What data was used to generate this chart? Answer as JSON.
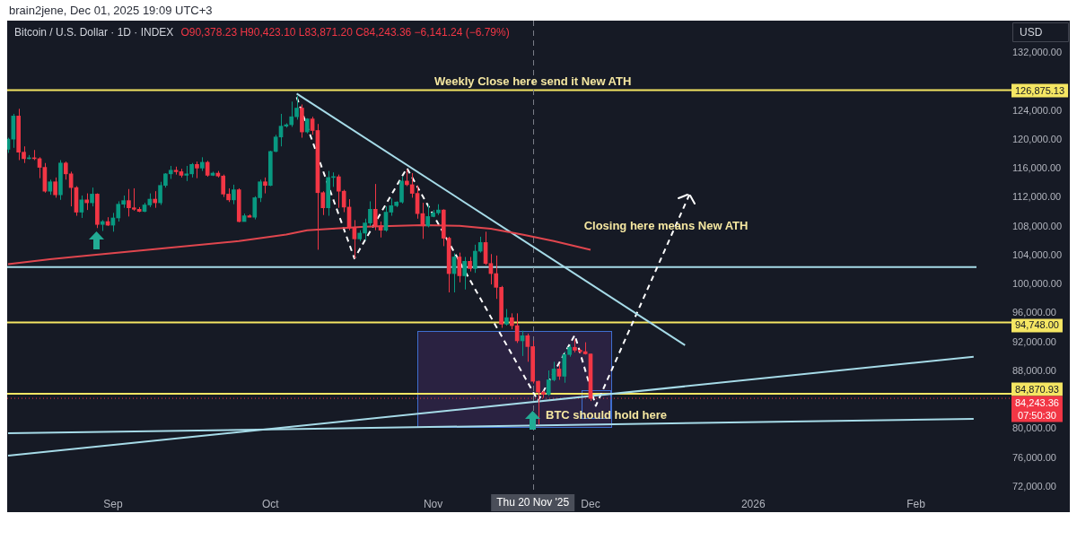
{
  "chart_data": {
    "type": "candlestick",
    "title": "Bitcoin / U.S. Dollar · 1D · INDEX",
    "subtitle": "O90,378.23 H90,423.10 L83,871.20 C84,243.36 −6,141.24 (−6.79%)",
    "ylabel": "USD",
    "x": [
      "2025-08-12",
      "2025-08-13",
      "2025-08-14",
      "2025-08-15",
      "2025-08-16",
      "2025-08-17",
      "2025-08-18",
      "2025-08-19",
      "2025-08-20",
      "2025-08-21",
      "2025-08-22",
      "2025-08-23",
      "2025-08-24",
      "2025-08-25",
      "2025-08-26",
      "2025-08-27",
      "2025-08-28",
      "2025-08-29",
      "2025-08-30",
      "2025-08-31",
      "2025-09-01",
      "2025-09-02",
      "2025-09-03",
      "2025-09-04",
      "2025-09-05",
      "2025-09-06",
      "2025-09-07",
      "2025-09-08",
      "2025-09-09",
      "2025-09-10",
      "2025-09-11",
      "2025-09-12",
      "2025-09-13",
      "2025-09-14",
      "2025-09-15",
      "2025-09-16",
      "2025-09-17",
      "2025-09-18",
      "2025-09-19",
      "2025-09-20",
      "2025-09-21",
      "2025-09-22",
      "2025-09-23",
      "2025-09-24",
      "2025-09-25",
      "2025-09-26",
      "2025-09-27",
      "2025-09-28",
      "2025-09-29",
      "2025-09-30",
      "2025-10-01",
      "2025-10-02",
      "2025-10-03",
      "2025-10-04",
      "2025-10-05",
      "2025-10-06",
      "2025-10-07",
      "2025-10-08",
      "2025-10-09",
      "2025-10-10",
      "2025-10-11",
      "2025-10-12",
      "2025-10-13",
      "2025-10-14",
      "2025-10-15",
      "2025-10-16",
      "2025-10-17",
      "2025-10-18",
      "2025-10-19",
      "2025-10-20",
      "2025-10-21",
      "2025-10-22",
      "2025-10-23",
      "2025-10-24",
      "2025-10-25",
      "2025-10-26",
      "2025-10-27",
      "2025-10-28",
      "2025-10-29",
      "2025-10-30",
      "2025-10-31",
      "2025-11-01",
      "2025-11-02",
      "2025-11-03",
      "2025-11-04",
      "2025-11-05",
      "2025-11-06",
      "2025-11-07",
      "2025-11-08",
      "2025-11-09",
      "2025-11-10",
      "2025-11-11",
      "2025-11-12",
      "2025-11-13",
      "2025-11-14",
      "2025-11-15",
      "2025-11-16",
      "2025-11-17",
      "2025-11-18",
      "2025-11-19",
      "2025-11-20",
      "2025-11-21",
      "2025-11-22",
      "2025-11-23",
      "2025-11-24",
      "2025-11-25",
      "2025-11-26",
      "2025-11-27",
      "2025-11-28",
      "2025-11-29",
      "2025-11-30",
      "2025-12-01"
    ],
    "ohlc": [
      [
        118700,
        120300,
        118200,
        120100
      ],
      [
        120100,
        123600,
        118900,
        123300
      ],
      [
        123300,
        124300,
        117200,
        118300
      ],
      [
        118300,
        119100,
        116800,
        117400
      ],
      [
        117400,
        117900,
        117300,
        117500
      ],
      [
        117500,
        118600,
        117200,
        117400
      ],
      [
        117400,
        117600,
        114700,
        116200
      ],
      [
        116200,
        116800,
        112700,
        112900
      ],
      [
        112900,
        114500,
        112400,
        114200
      ],
      [
        114200,
        114800,
        112000,
        112400
      ],
      [
        112400,
        117200,
        111700,
        116800
      ],
      [
        116800,
        117000,
        114500,
        115300
      ],
      [
        115300,
        115600,
        110800,
        113400
      ],
      [
        113400,
        113600,
        109500,
        110000
      ],
      [
        110000,
        112300,
        109200,
        111700
      ],
      [
        111700,
        112600,
        110300,
        111300
      ],
      [
        111300,
        113400,
        110800,
        112500
      ],
      [
        112500,
        112600,
        107800,
        108300
      ],
      [
        108300,
        108900,
        107400,
        108700
      ],
      [
        108700,
        109300,
        108100,
        108200
      ],
      [
        108200,
        109900,
        107300,
        109200
      ],
      [
        109200,
        111500,
        108700,
        111100
      ],
      [
        111100,
        112300,
        110600,
        111600
      ],
      [
        111600,
        113200,
        109400,
        110600
      ],
      [
        110600,
        113300,
        110200,
        110400
      ],
      [
        110400,
        110700,
        110000,
        110100
      ],
      [
        110100,
        111300,
        110000,
        111000
      ],
      [
        111000,
        112600,
        110700,
        111800
      ],
      [
        111800,
        112900,
        110600,
        111300
      ],
      [
        111300,
        114200,
        111000,
        113700
      ],
      [
        113700,
        115400,
        113400,
        115300
      ],
      [
        115300,
        116400,
        114600,
        115800
      ],
      [
        115800,
        116300,
        115200,
        115600
      ],
      [
        115600,
        116000,
        114800,
        115100
      ],
      [
        115100,
        116400,
        114300,
        115300
      ],
      [
        115300,
        116800,
        114800,
        116600
      ],
      [
        116600,
        117000,
        114700,
        116100
      ],
      [
        116100,
        117600,
        115700,
        116900
      ],
      [
        116900,
        117100,
        114900,
        115100
      ],
      [
        115100,
        115600,
        115000,
        115400
      ],
      [
        115400,
        115700,
        114800,
        115000
      ],
      [
        115000,
        115200,
        112100,
        112500
      ],
      [
        112500,
        113300,
        111400,
        111700
      ],
      [
        111700,
        113800,
        111100,
        113100
      ],
      [
        113100,
        113300,
        108600,
        108700
      ],
      [
        108700,
        109800,
        108700,
        109500
      ],
      [
        109500,
        109700,
        109300,
        109300
      ],
      [
        109300,
        112200,
        109000,
        112000
      ],
      [
        112000,
        114500,
        111400,
        114200
      ],
      [
        114200,
        114800,
        112600,
        113700
      ],
      [
        113700,
        118500,
        113600,
        118400
      ],
      [
        118400,
        120700,
        118300,
        120400
      ],
      [
        120400,
        123600,
        119100,
        121900
      ],
      [
        121900,
        122300,
        121700,
        122100
      ],
      [
        122100,
        125300,
        121800,
        123200
      ],
      [
        123200,
        126100,
        122800,
        124400
      ],
      [
        124400,
        124900,
        120300,
        121100
      ],
      [
        121100,
        123000,
        120900,
        122900
      ],
      [
        122900,
        123200,
        120700,
        121300
      ],
      [
        121300,
        122200,
        104800,
        112700
      ],
      [
        112700,
        112900,
        109600,
        110600
      ],
      [
        110600,
        115700,
        109500,
        114800
      ],
      [
        114800,
        115500,
        113500,
        114900
      ],
      [
        114900,
        115200,
        110600,
        112900
      ],
      [
        112900,
        113100,
        110000,
        110700
      ],
      [
        110700,
        111800,
        107500,
        107800
      ],
      [
        107800,
        108900,
        103600,
        106300
      ],
      [
        106300,
        107500,
        106000,
        107100
      ],
      [
        107100,
        109100,
        106100,
        108500
      ],
      [
        108500,
        111500,
        108100,
        110400
      ],
      [
        110400,
        113900,
        107500,
        108100
      ],
      [
        108100,
        108700,
        106500,
        107500
      ],
      [
        107500,
        110800,
        107300,
        110000
      ],
      [
        110000,
        111900,
        109500,
        110900
      ],
      [
        110900,
        111500,
        110700,
        111400
      ],
      [
        111400,
        114900,
        111200,
        114300
      ],
      [
        114300,
        115900,
        113600,
        113800
      ],
      [
        113800,
        115400,
        112000,
        112600
      ],
      [
        112600,
        113700,
        109100,
        109800
      ],
      [
        109800,
        111300,
        106300,
        108100
      ],
      [
        108100,
        111100,
        107900,
        109400
      ],
      [
        109400,
        110300,
        109300,
        109900
      ],
      [
        109900,
        111100,
        109600,
        110300
      ],
      [
        110300,
        110400,
        105300,
        106400
      ],
      [
        106400,
        106600,
        98900,
        101500
      ],
      [
        101500,
        104300,
        98900,
        103800
      ],
      [
        103800,
        104400,
        100300,
        101200
      ],
      [
        101200,
        103800,
        99300,
        103200
      ],
      [
        103200,
        103800,
        101800,
        102200
      ],
      [
        102200,
        105500,
        101600,
        104600
      ],
      [
        104600,
        106600,
        104400,
        105800
      ],
      [
        105800,
        107300,
        102700,
        102900
      ],
      [
        102900,
        104200,
        100000,
        101500
      ],
      [
        101500,
        104000,
        98000,
        99600
      ],
      [
        99600,
        99800,
        94000,
        94500
      ],
      [
        94500,
        96600,
        94300,
        95400
      ],
      [
        95400,
        96000,
        93800,
        94300
      ],
      [
        94300,
        96000,
        91900,
        92200
      ],
      [
        92200,
        93600,
        90100,
        92900
      ],
      [
        92900,
        93200,
        89300,
        91400
      ],
      [
        91400,
        92200,
        86300,
        86600
      ],
      [
        86600,
        86700,
        80600,
        85100
      ],
      [
        85100,
        85300,
        84300,
        84800
      ],
      [
        84800,
        88100,
        84600,
        86800
      ],
      [
        86800,
        89300,
        86600,
        88300
      ],
      [
        88300,
        88900,
        86800,
        87300
      ],
      [
        87300,
        90700,
        86400,
        90300
      ],
      [
        90300,
        91700,
        90000,
        91300
      ],
      [
        91300,
        92400,
        90600,
        90900
      ],
      [
        90900,
        91100,
        90500,
        90700
      ],
      [
        90700,
        92000,
        90300,
        90400
      ],
      [
        90378.23,
        90423.1,
        83871.2,
        84243.36
      ]
    ],
    "series": [
      {
        "type": "line",
        "color": "#e0464e",
        "x": [
          "2025-08-12",
          "2025-08-20",
          "2025-08-27",
          "2025-09-09",
          "2025-09-25",
          "2025-10-04",
          "2025-10-08",
          "2025-10-19",
          "2025-10-30",
          "2025-11-06",
          "2025-11-12",
          "2025-11-18",
          "2025-11-24",
          "2025-12-01"
        ],
        "values": [
          102800,
          103500,
          104000,
          104900,
          106000,
          106900,
          107500,
          108000,
          108200,
          108100,
          107700,
          106900,
          106000,
          104800
        ]
      },
      {
        "type": "line",
        "color": "#a6dbe8",
        "x": [
          "2025-10-06",
          "2025-12-19"
        ],
        "values": [
          126400,
          91600
        ]
      },
      {
        "type": "line",
        "color": "#a6dbe8",
        "x": [
          "2025-08-12",
          "2026-02-12"
        ],
        "values": [
          76300,
          90000
        ]
      },
      {
        "type": "line",
        "color": "#a6dbe8",
        "x": [
          "2025-08-12",
          "2026-02-12"
        ],
        "values": [
          79400,
          81400
        ]
      },
      {
        "type": "line",
        "color": "#ffffff",
        "line_style": "dashed",
        "x": [
          "2025-10-06",
          "2025-10-17",
          "2025-10-27",
          "2025-11-21",
          "2025-11-28",
          "2025-12-02",
          "2025-12-20"
        ],
        "values": [
          125900,
          103600,
          116100,
          83900,
          93000,
          83200,
          112700
        ]
      }
    ],
    "ref_lines": [
      {
        "axis": "y",
        "value": 126875.13,
        "label": "126,875.13",
        "color": "#f5e663"
      },
      {
        "axis": "y",
        "value": 102400,
        "color": "#a6dbe8"
      },
      {
        "axis": "y",
        "value": 94748,
        "label": "94,748.00",
        "color": "#f5e663"
      },
      {
        "axis": "y",
        "value": 84870.93,
        "label": "84,870.93",
        "color": "#f5e663"
      },
      {
        "axis": "y",
        "value": 84243.36,
        "label": "84,243.36",
        "color": "#f23645",
        "line_style": "dotted"
      },
      {
        "axis": "x",
        "value": "2025-11-20",
        "label": "Thu 20 Nov '25",
        "color": "#7a7d87",
        "line_style": "dashed"
      }
    ],
    "annotations": [
      "brain2jene, Dec 01, 2025 19:09 UTC+3",
      "07:50:30",
      "Closing here means New ATH",
      {
        "text": "Weekly Close here send it New ATH",
        "x": "2025-11-20",
        "y": 128000
      },
      {
        "text": "BTC should hold here",
        "x": "2025-12-04",
        "y": 81900
      }
    ],
    "xlim": [
      "2025-08-11T20:00",
      "2026-02-12T13:00"
    ],
    "ylim": [
      71100,
      136500
    ],
    "xticks": [
      {
        "value": "2025-09-01",
        "label": "Sep"
      },
      {
        "value": "2025-10-01",
        "label": "Oct"
      },
      {
        "value": "2025-11-01",
        "label": "Nov"
      },
      {
        "value": "2025-12-01",
        "label": "Dec"
      },
      {
        "value": "2026-01-01",
        "label": "2026"
      },
      {
        "value": "2026-02-01",
        "label": "Feb"
      }
    ],
    "yticks": [
      {
        "value": 132000,
        "label": "132,000.00"
      },
      {
        "value": 124000,
        "label": "124,000.00"
      },
      {
        "value": 120000,
        "label": "120,000.00"
      },
      {
        "value": 116000,
        "label": "116,000.00"
      },
      {
        "value": 112000,
        "label": "112,000.00"
      },
      {
        "value": 108000,
        "label": "108,000.00"
      },
      {
        "value": 104000,
        "label": "104,000.00"
      },
      {
        "value": 100000,
        "label": "100,000.00"
      },
      {
        "value": 96000,
        "label": "96,000.00"
      },
      {
        "value": 92000,
        "label": "92,000.00"
      },
      {
        "value": 88000,
        "label": "88,000.00"
      },
      {
        "value": 80000,
        "label": "80,000.00"
      },
      {
        "value": 76000,
        "label": "76,000.00"
      },
      {
        "value": 72000,
        "label": "72,000.00"
      }
    ]
  }
}
